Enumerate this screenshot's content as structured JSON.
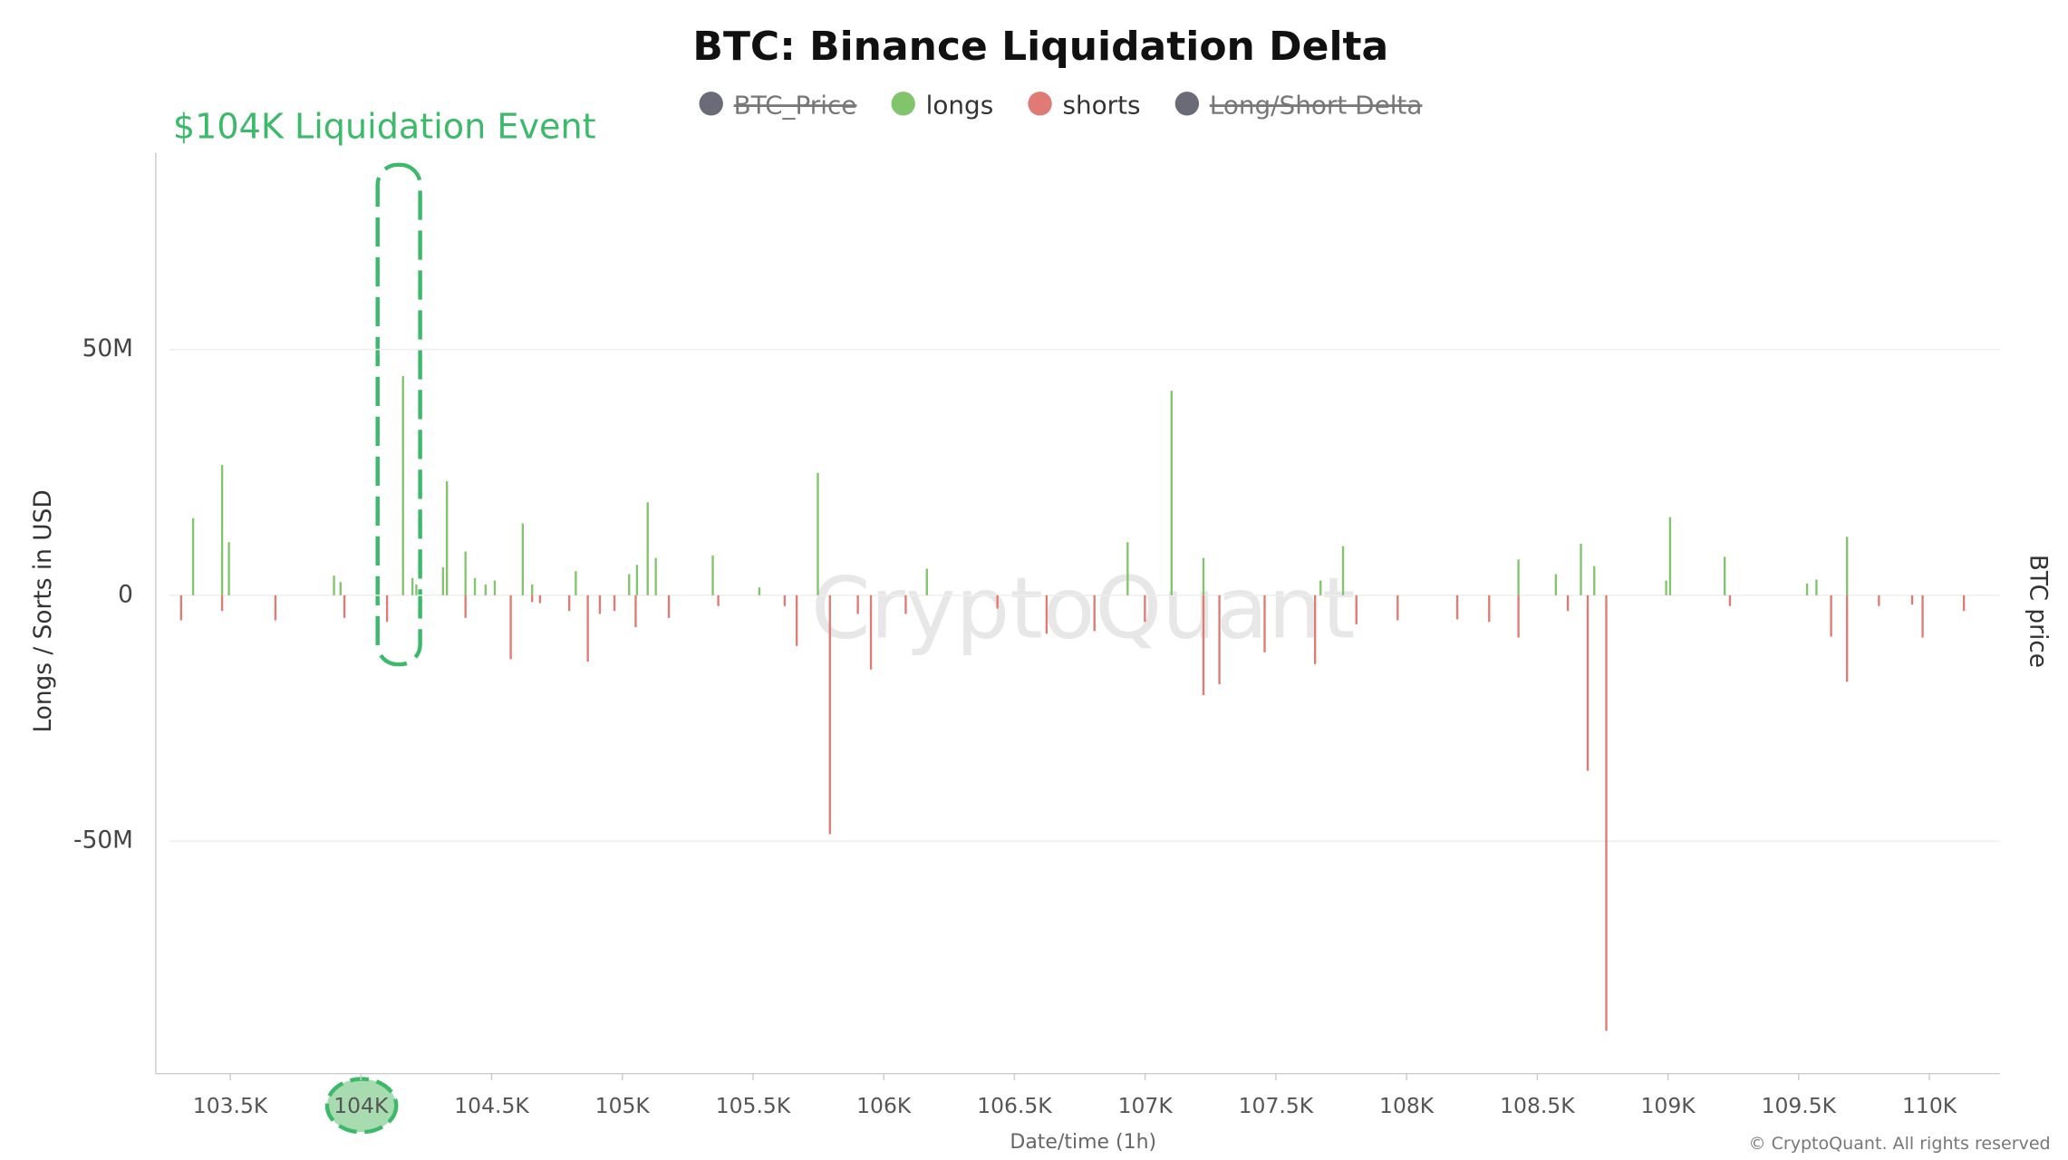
{
  "chart_data": {
    "type": "bar",
    "title": "BTC: Binance Liquidation Delta",
    "annotation": "$104K Liquidation Event",
    "watermark": "CryptoQuant",
    "x_label": "Date/time (1h)",
    "y_label": "Longs / Sorts in USD",
    "y2_label": "BTC price",
    "footer": "© CryptoQuant. All rights reserved",
    "grid": true,
    "xlim": [
      103215,
      110270
    ],
    "ylim": [
      -97300000,
      90000000
    ],
    "xticks": [
      {
        "value": 103500,
        "label": "103.5K"
      },
      {
        "value": 104000,
        "label": "104K"
      },
      {
        "value": 104500,
        "label": "104.5K"
      },
      {
        "value": 105000,
        "label": "105K"
      },
      {
        "value": 105500,
        "label": "105.5K"
      },
      {
        "value": 106000,
        "label": "106K"
      },
      {
        "value": 106500,
        "label": "106.5K"
      },
      {
        "value": 107000,
        "label": "107K"
      },
      {
        "value": 107500,
        "label": "107.5K"
      },
      {
        "value": 108000,
        "label": "108K"
      },
      {
        "value": 108500,
        "label": "108.5K"
      },
      {
        "value": 109000,
        "label": "109K"
      },
      {
        "value": 109500,
        "label": "109.5K"
      },
      {
        "value": 110000,
        "label": "110K"
      }
    ],
    "yticks": [
      {
        "value": -50000000,
        "label": "-50M"
      },
      0,
      {
        "value": 50000000,
        "label": "50M"
      }
    ],
    "series": [
      {
        "name": "BTC_Price",
        "color": "#6b6b78",
        "visible": false
      },
      {
        "name": "longs",
        "color": "#82c46c",
        "visible": true,
        "x": [
          103358,
          103469,
          103495,
          103897,
          103922,
          104161,
          104197,
          104212,
          104314,
          104329,
          104400,
          104436,
          104477,
          104512,
          104619,
          104655,
          104822,
          105026,
          105056,
          105097,
          105128,
          105346,
          105524,
          105748,
          106165,
          106933,
          107101,
          107223,
          107671,
          107757,
          108428,
          108571,
          108667,
          108718,
          108993,
          109008,
          109217,
          109532,
          109568,
          109685
        ],
        "values": [
          15700000,
          26500000,
          10800000,
          4000000,
          2700000,
          44600000,
          3500000,
          2200000,
          5700000,
          23200000,
          8900000,
          3500000,
          2200000,
          3000000,
          14600000,
          2200000,
          4900000,
          4300000,
          6200000,
          18900000,
          7600000,
          8100000,
          1600000,
          24900000,
          5400000,
          10800000,
          41600000,
          7600000,
          3000000,
          10000000,
          7300000,
          4300000,
          10500000,
          5900000,
          3000000,
          15900000,
          7800000,
          2400000,
          3200000,
          11900000
        ]
      },
      {
        "name": "shorts",
        "color": "#e07a74",
        "visible": true,
        "x": [
          103312,
          103469,
          103673,
          103937,
          104100,
          104400,
          104573,
          104655,
          104685,
          104797,
          104868,
          104914,
          104970,
          105051,
          105178,
          105367,
          105621,
          105667,
          105794,
          105901,
          105951,
          106084,
          106435,
          106623,
          106806,
          106999,
          107223,
          107284,
          107457,
          107650,
          107808,
          107966,
          108194,
          108316,
          108428,
          108617,
          108693,
          108764,
          109237,
          109624,
          109685,
          109807,
          109934,
          109974,
          110132
        ],
        "values": [
          -5100000,
          -3200000,
          -5100000,
          -4600000,
          -5400000,
          -4600000,
          -13000000,
          -1400000,
          -1600000,
          -3200000,
          -13500000,
          -3800000,
          -3200000,
          -6500000,
          -4600000,
          -2200000,
          -2200000,
          -10300000,
          -48600000,
          -3800000,
          -15100000,
          -3800000,
          -2700000,
          -7800000,
          -7300000,
          -5400000,
          -20300000,
          -18100000,
          -11600000,
          -14000000,
          -5900000,
          -5100000,
          -4900000,
          -5400000,
          -8600000,
          -3200000,
          -35700000,
          -88600000,
          -2200000,
          -8400000,
          -17600000,
          -2200000,
          -1900000,
          -8600000,
          -3200000
        ]
      },
      {
        "name": "Long/Short Delta",
        "color": "#6b6b78",
        "visible": false
      }
    ]
  }
}
